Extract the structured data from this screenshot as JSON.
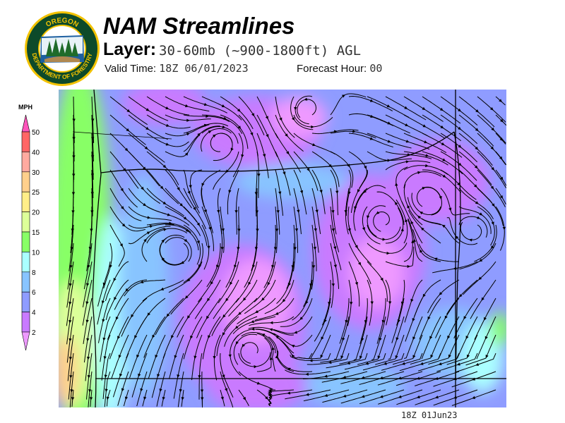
{
  "header": {
    "title": "NAM Streamlines",
    "layer_label": "Layer:",
    "layer_value": "30-60mb (~900-1800ft) AGL",
    "valid_time_label": "Valid Time:",
    "valid_time_value": "18Z 06/01/2023",
    "forecast_hour_label": "Forecast Hour:",
    "forecast_hour_value": "00"
  },
  "logo": {
    "text_top": "OREGON",
    "text_bottom": "DEPARTMENT OF FORESTRY",
    "ring_color": "#f2c200",
    "bg_color": "#0d4a2a"
  },
  "colorbar": {
    "unit": "MPH",
    "levels": [
      "50",
      "40",
      "30",
      "25",
      "20",
      "15",
      "10",
      "8",
      "6",
      "4",
      "2"
    ],
    "colors_top_to_bottom": [
      "#ff55bb",
      "#ff6666",
      "#ffaaa0",
      "#ffd08c",
      "#ffee88",
      "#ddff99",
      "#88ff66",
      "#aaffff",
      "#88c4ff",
      "#8f9cff",
      "#c97aff",
      "#ee99ff"
    ]
  },
  "map": {
    "field": "wind streamlines",
    "region": "Oregon"
  },
  "footer": {
    "stamp": "18Z 01Jun23"
  }
}
